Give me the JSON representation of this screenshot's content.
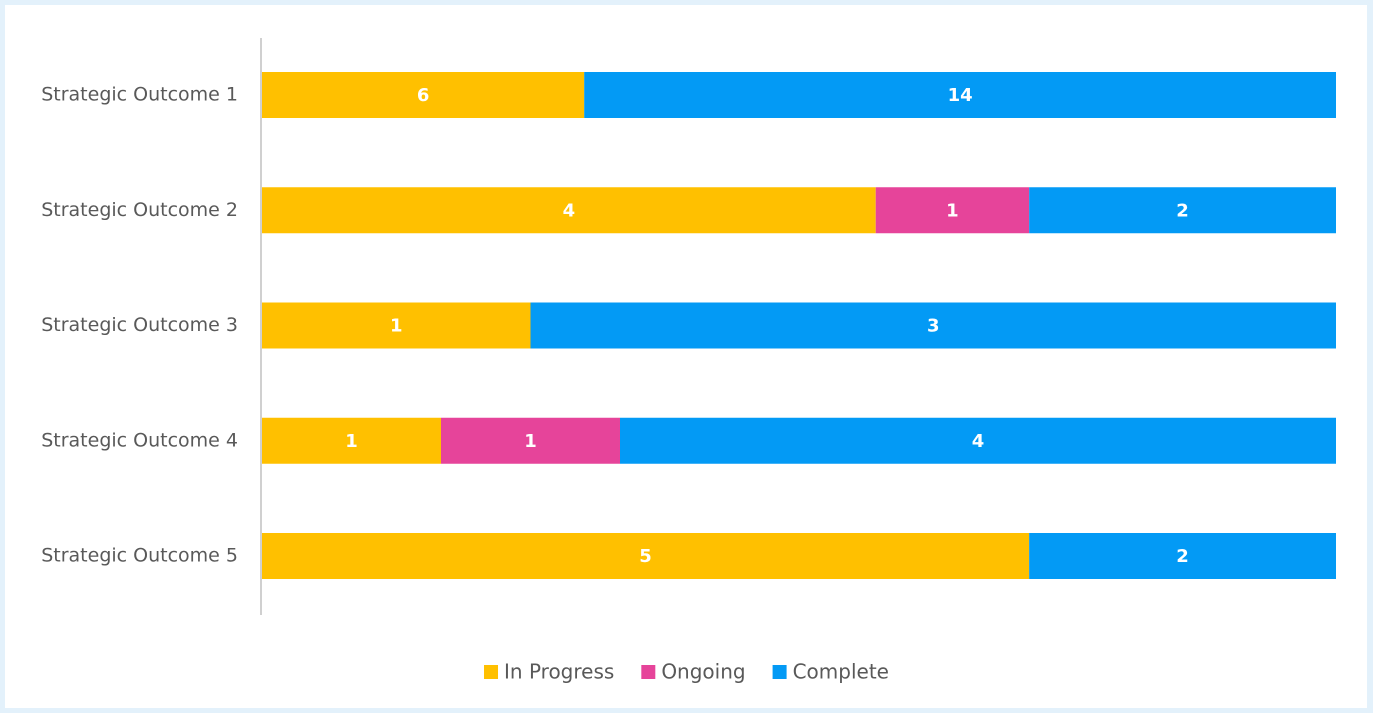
{
  "chart_data": {
    "type": "bar",
    "orientation": "horizontal",
    "stacking": "percent",
    "categories": [
      "Strategic Outcome 1",
      "Strategic Outcome 2",
      "Strategic Outcome 3",
      "Strategic Outcome 4",
      "Strategic Outcome 5"
    ],
    "series": [
      {
        "name": "In Progress",
        "color": "#ffc000",
        "values": [
          6,
          4,
          1,
          1,
          5
        ]
      },
      {
        "name": "Ongoing",
        "color": "#e6449a",
        "values": [
          null,
          1,
          null,
          1,
          null
        ]
      },
      {
        "name": "Complete",
        "color": "#039af5",
        "values": [
          14,
          2,
          3,
          4,
          2
        ]
      }
    ],
    "legend": "bottom"
  }
}
